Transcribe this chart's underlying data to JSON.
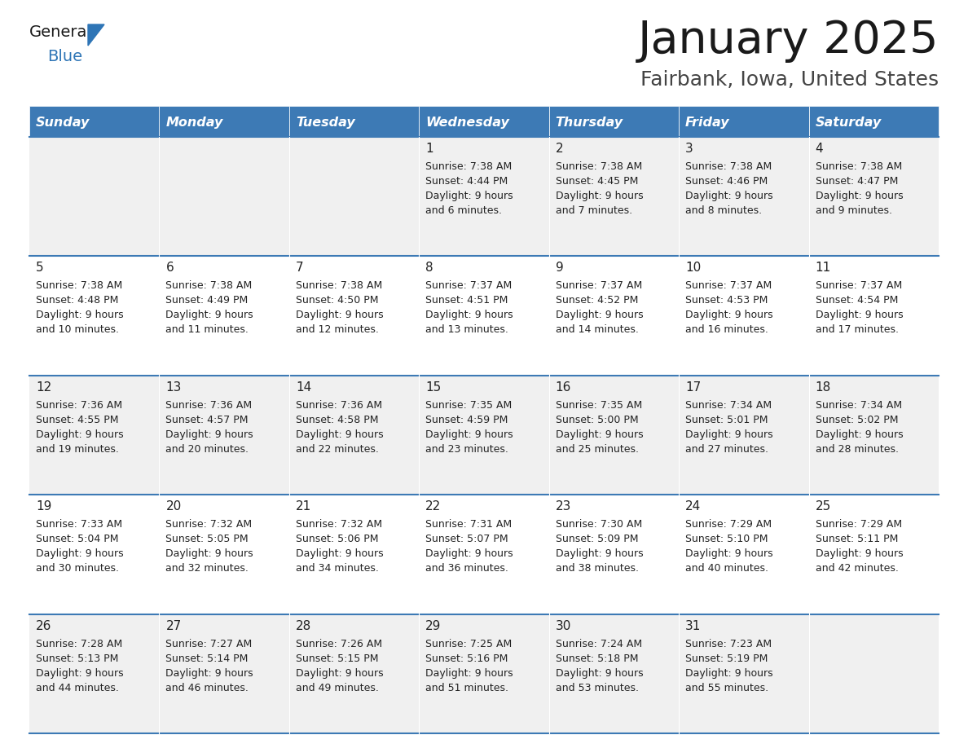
{
  "title": "January 2025",
  "subtitle": "Fairbank, Iowa, United States",
  "header_bg_color": "#3D7AB5",
  "header_text_color": "#FFFFFF",
  "header_days": [
    "Sunday",
    "Monday",
    "Tuesday",
    "Wednesday",
    "Thursday",
    "Friday",
    "Saturday"
  ],
  "odd_row_bg": "#F0F0F0",
  "even_row_bg": "#FFFFFF",
  "cell_text_color": "#222222",
  "day_num_color": "#222222",
  "title_color": "#1a1a1a",
  "subtitle_color": "#444444",
  "logo_general_color": "#1a1a1a",
  "logo_blue_color": "#2E75B6",
  "calendar_data": [
    [
      {
        "day": "",
        "sunrise": "",
        "sunset": "",
        "daylight": ""
      },
      {
        "day": "",
        "sunrise": "",
        "sunset": "",
        "daylight": ""
      },
      {
        "day": "",
        "sunrise": "",
        "sunset": "",
        "daylight": ""
      },
      {
        "day": "1",
        "sunrise": "7:38 AM",
        "sunset": "4:44 PM",
        "daylight": "9 hours and 6 minutes."
      },
      {
        "day": "2",
        "sunrise": "7:38 AM",
        "sunset": "4:45 PM",
        "daylight": "9 hours and 7 minutes."
      },
      {
        "day": "3",
        "sunrise": "7:38 AM",
        "sunset": "4:46 PM",
        "daylight": "9 hours and 8 minutes."
      },
      {
        "day": "4",
        "sunrise": "7:38 AM",
        "sunset": "4:47 PM",
        "daylight": "9 hours and 9 minutes."
      }
    ],
    [
      {
        "day": "5",
        "sunrise": "7:38 AM",
        "sunset": "4:48 PM",
        "daylight": "9 hours and 10 minutes."
      },
      {
        "day": "6",
        "sunrise": "7:38 AM",
        "sunset": "4:49 PM",
        "daylight": "9 hours and 11 minutes."
      },
      {
        "day": "7",
        "sunrise": "7:38 AM",
        "sunset": "4:50 PM",
        "daylight": "9 hours and 12 minutes."
      },
      {
        "day": "8",
        "sunrise": "7:37 AM",
        "sunset": "4:51 PM",
        "daylight": "9 hours and 13 minutes."
      },
      {
        "day": "9",
        "sunrise": "7:37 AM",
        "sunset": "4:52 PM",
        "daylight": "9 hours and 14 minutes."
      },
      {
        "day": "10",
        "sunrise": "7:37 AM",
        "sunset": "4:53 PM",
        "daylight": "9 hours and 16 minutes."
      },
      {
        "day": "11",
        "sunrise": "7:37 AM",
        "sunset": "4:54 PM",
        "daylight": "9 hours and 17 minutes."
      }
    ],
    [
      {
        "day": "12",
        "sunrise": "7:36 AM",
        "sunset": "4:55 PM",
        "daylight": "9 hours and 19 minutes."
      },
      {
        "day": "13",
        "sunrise": "7:36 AM",
        "sunset": "4:57 PM",
        "daylight": "9 hours and 20 minutes."
      },
      {
        "day": "14",
        "sunrise": "7:36 AM",
        "sunset": "4:58 PM",
        "daylight": "9 hours and 22 minutes."
      },
      {
        "day": "15",
        "sunrise": "7:35 AM",
        "sunset": "4:59 PM",
        "daylight": "9 hours and 23 minutes."
      },
      {
        "day": "16",
        "sunrise": "7:35 AM",
        "sunset": "5:00 PM",
        "daylight": "9 hours and 25 minutes."
      },
      {
        "day": "17",
        "sunrise": "7:34 AM",
        "sunset": "5:01 PM",
        "daylight": "9 hours and 27 minutes."
      },
      {
        "day": "18",
        "sunrise": "7:34 AM",
        "sunset": "5:02 PM",
        "daylight": "9 hours and 28 minutes."
      }
    ],
    [
      {
        "day": "19",
        "sunrise": "7:33 AM",
        "sunset": "5:04 PM",
        "daylight": "9 hours and 30 minutes."
      },
      {
        "day": "20",
        "sunrise": "7:32 AM",
        "sunset": "5:05 PM",
        "daylight": "9 hours and 32 minutes."
      },
      {
        "day": "21",
        "sunrise": "7:32 AM",
        "sunset": "5:06 PM",
        "daylight": "9 hours and 34 minutes."
      },
      {
        "day": "22",
        "sunrise": "7:31 AM",
        "sunset": "5:07 PM",
        "daylight": "9 hours and 36 minutes."
      },
      {
        "day": "23",
        "sunrise": "7:30 AM",
        "sunset": "5:09 PM",
        "daylight": "9 hours and 38 minutes."
      },
      {
        "day": "24",
        "sunrise": "7:29 AM",
        "sunset": "5:10 PM",
        "daylight": "9 hours and 40 minutes."
      },
      {
        "day": "25",
        "sunrise": "7:29 AM",
        "sunset": "5:11 PM",
        "daylight": "9 hours and 42 minutes."
      }
    ],
    [
      {
        "day": "26",
        "sunrise": "7:28 AM",
        "sunset": "5:13 PM",
        "daylight": "9 hours and 44 minutes."
      },
      {
        "day": "27",
        "sunrise": "7:27 AM",
        "sunset": "5:14 PM",
        "daylight": "9 hours and 46 minutes."
      },
      {
        "day": "28",
        "sunrise": "7:26 AM",
        "sunset": "5:15 PM",
        "daylight": "9 hours and 49 minutes."
      },
      {
        "day": "29",
        "sunrise": "7:25 AM",
        "sunset": "5:16 PM",
        "daylight": "9 hours and 51 minutes."
      },
      {
        "day": "30",
        "sunrise": "7:24 AM",
        "sunset": "5:18 PM",
        "daylight": "9 hours and 53 minutes."
      },
      {
        "day": "31",
        "sunrise": "7:23 AM",
        "sunset": "5:19 PM",
        "daylight": "9 hours and 55 minutes."
      },
      {
        "day": "",
        "sunrise": "",
        "sunset": "",
        "daylight": ""
      }
    ]
  ]
}
